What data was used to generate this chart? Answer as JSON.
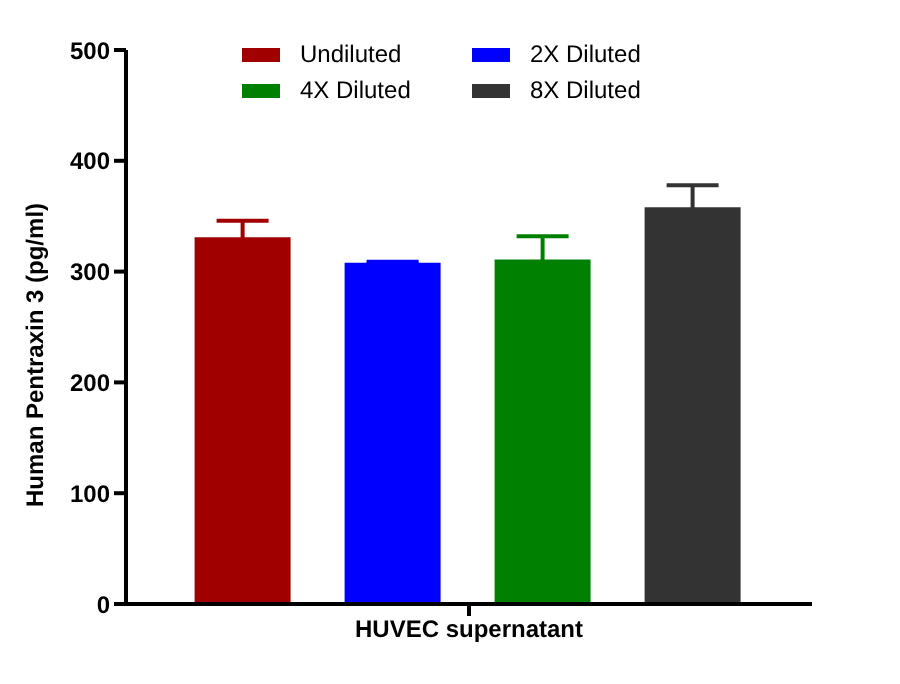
{
  "chart_data": {
    "type": "bar",
    "categories": [
      "HUVEC supernatant"
    ],
    "ylabel": "Human Pentraxin 3 (pg/ml)",
    "ylim": [
      0,
      500
    ],
    "yticks": [
      0,
      100,
      200,
      300,
      400,
      500
    ],
    "grid": false,
    "legend": "top",
    "series": [
      {
        "name": "Undiluted",
        "color": "#a00000",
        "values": [
          331
        ],
        "errors": [
          15
        ]
      },
      {
        "name": "2X Diluted",
        "color": "#0000ff",
        "values": [
          308
        ],
        "errors": [
          1
        ]
      },
      {
        "name": "4X Diluted",
        "color": "#008000",
        "values": [
          311
        ],
        "errors": [
          21
        ]
      },
      {
        "name": "8X Diluted",
        "color": "#333333",
        "values": [
          358
        ],
        "errors": [
          20
        ]
      }
    ]
  }
}
